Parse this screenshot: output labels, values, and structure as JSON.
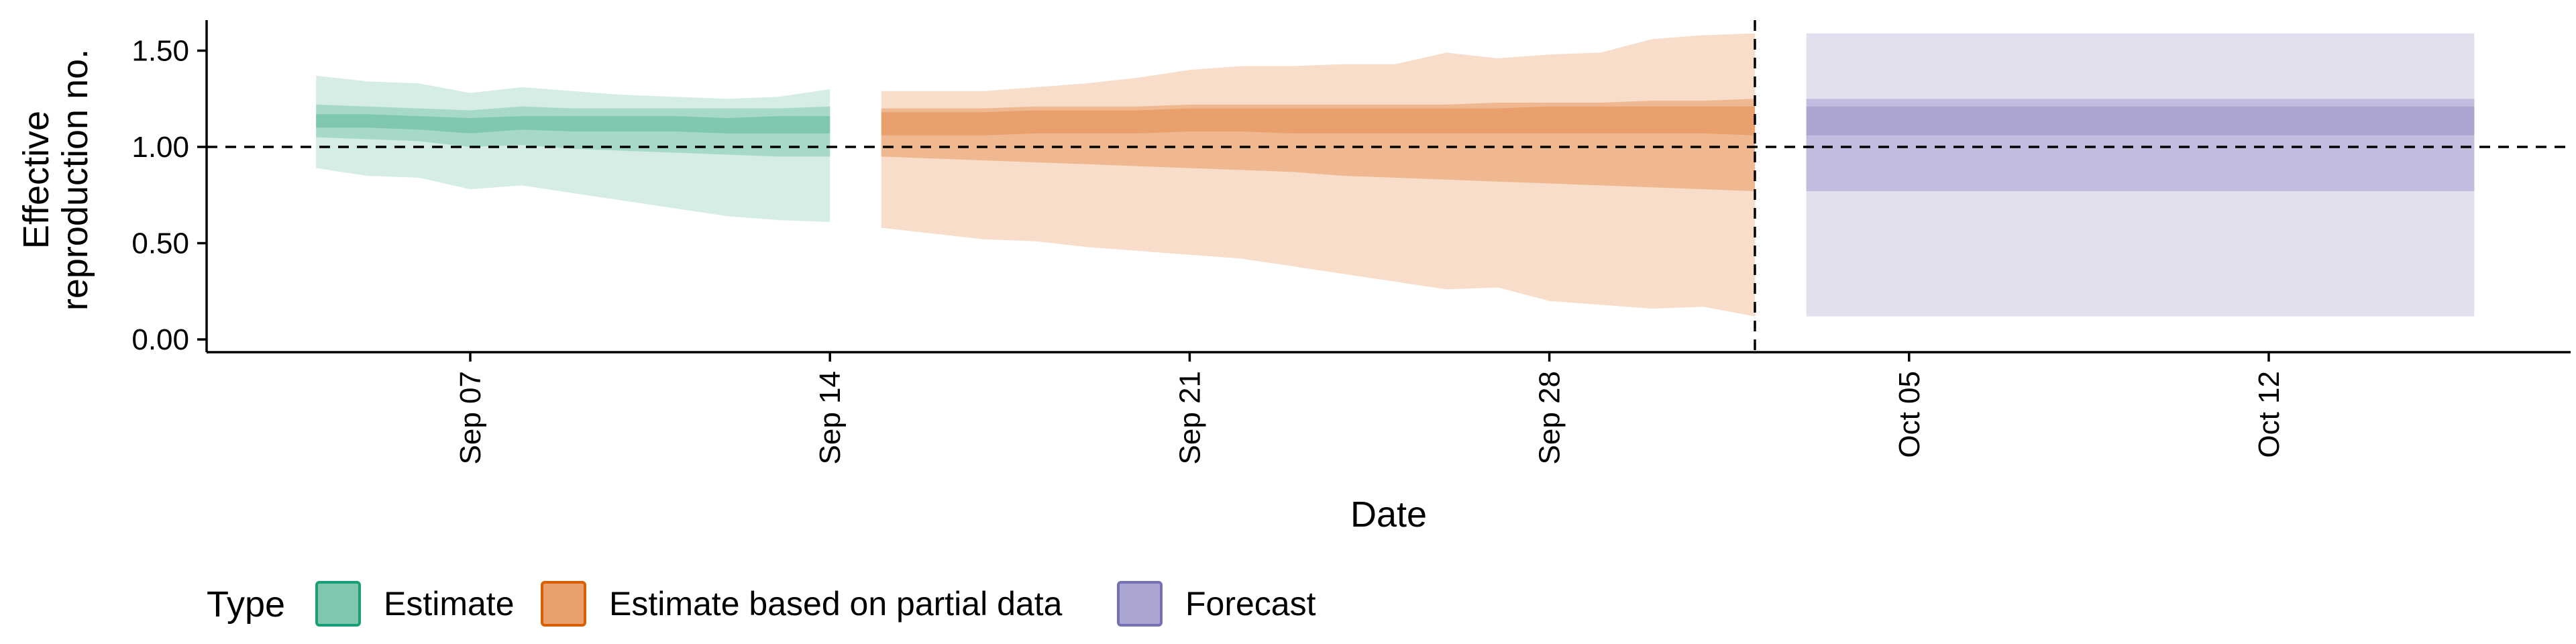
{
  "chart_data": {
    "type": "area",
    "xlabel": "Date",
    "ylabel": [
      "Effective",
      "reproduction no."
    ],
    "ylim": [
      0,
      1.65
    ],
    "yticks": [
      0.0,
      0.5,
      1.0,
      1.5
    ],
    "ytick_labels": [
      "0.00",
      "0.50",
      "1.00",
      "1.50"
    ],
    "xticks": [
      "2020-09-07",
      "2020-09-14",
      "2020-09-21",
      "2020-09-28",
      "2020-10-05",
      "2020-10-12"
    ],
    "xtick_labels": [
      "Sep 07",
      "Sep 14",
      "Sep 21",
      "Sep 28",
      "Oct 05",
      "Oct 12"
    ],
    "xlim": [
      "2020-09-01",
      "2020-10-17"
    ],
    "reference_lines": {
      "horizontal_y": 1.0,
      "vertical_x": "2020-10-02",
      "style": "dashed"
    },
    "legend": {
      "title": "Type",
      "position": "bottom-left",
      "items": [
        {
          "label": "Estimate",
          "fill": "#7fc8ad",
          "border": "#1b9e77"
        },
        {
          "label": "Estimate based on partial data",
          "fill": "#e9a06d",
          "border": "#d95f02"
        },
        {
          "label": "Forecast",
          "fill": "#aba6d1",
          "border": "#7570b3"
        }
      ]
    },
    "series": [
      {
        "name": "Estimate",
        "colors": {
          "outer": "#d5ede4",
          "mid": "#a6dac7",
          "inner": "#7fc8ad"
        },
        "x": [
          "2020-09-04",
          "2020-09-05",
          "2020-09-06",
          "2020-09-07",
          "2020-09-08",
          "2020-09-09",
          "2020-09-10",
          "2020-09-11",
          "2020-09-12",
          "2020-09-13",
          "2020-09-14"
        ],
        "outer_lower": [
          0.89,
          0.85,
          0.84,
          0.78,
          0.8,
          0.76,
          0.72,
          0.68,
          0.64,
          0.62,
          0.61
        ],
        "outer_upper": [
          1.37,
          1.34,
          1.33,
          1.28,
          1.31,
          1.29,
          1.27,
          1.26,
          1.25,
          1.26,
          1.3
        ],
        "mid_lower": [
          1.05,
          1.04,
          1.03,
          1.0,
          1.01,
          0.99,
          0.98,
          0.97,
          0.96,
          0.95,
          0.95
        ],
        "mid_upper": [
          1.22,
          1.21,
          1.2,
          1.19,
          1.21,
          1.2,
          1.2,
          1.2,
          1.2,
          1.2,
          1.21
        ],
        "inner_lower": [
          1.1,
          1.1,
          1.09,
          1.07,
          1.09,
          1.08,
          1.08,
          1.08,
          1.07,
          1.07,
          1.07
        ],
        "inner_upper": [
          1.17,
          1.17,
          1.16,
          1.15,
          1.16,
          1.16,
          1.16,
          1.16,
          1.15,
          1.16,
          1.16
        ]
      },
      {
        "name": "Estimate based on partial data",
        "colors": {
          "outer": "#f7ddca",
          "mid": "#efb890",
          "inner": "#e9a06d"
        },
        "x": [
          "2020-09-15",
          "2020-09-16",
          "2020-09-17",
          "2020-09-18",
          "2020-09-19",
          "2020-09-20",
          "2020-09-21",
          "2020-09-22",
          "2020-09-23",
          "2020-09-24",
          "2020-09-25",
          "2020-09-26",
          "2020-09-27",
          "2020-09-28",
          "2020-09-29",
          "2020-09-30",
          "2020-10-01",
          "2020-10-02"
        ],
        "outer_lower": [
          0.58,
          0.55,
          0.52,
          0.51,
          0.48,
          0.46,
          0.44,
          0.42,
          0.38,
          0.34,
          0.3,
          0.26,
          0.27,
          0.2,
          0.18,
          0.16,
          0.17,
          0.12
        ],
        "outer_upper": [
          1.29,
          1.29,
          1.29,
          1.31,
          1.33,
          1.36,
          1.4,
          1.42,
          1.42,
          1.43,
          1.43,
          1.49,
          1.46,
          1.48,
          1.49,
          1.56,
          1.58,
          1.59
        ],
        "mid_lower": [
          0.95,
          0.94,
          0.93,
          0.92,
          0.91,
          0.9,
          0.89,
          0.88,
          0.87,
          0.85,
          0.84,
          0.83,
          0.82,
          0.81,
          0.8,
          0.79,
          0.78,
          0.77
        ],
        "mid_upper": [
          1.2,
          1.2,
          1.2,
          1.21,
          1.21,
          1.21,
          1.22,
          1.22,
          1.22,
          1.22,
          1.22,
          1.22,
          1.23,
          1.23,
          1.23,
          1.24,
          1.24,
          1.25
        ],
        "inner_lower": [
          1.06,
          1.06,
          1.06,
          1.07,
          1.07,
          1.07,
          1.08,
          1.08,
          1.07,
          1.07,
          1.07,
          1.07,
          1.07,
          1.07,
          1.07,
          1.07,
          1.07,
          1.06
        ],
        "inner_upper": [
          1.18,
          1.18,
          1.18,
          1.19,
          1.19,
          1.19,
          1.2,
          1.2,
          1.2,
          1.2,
          1.2,
          1.2,
          1.2,
          1.21,
          1.21,
          1.21,
          1.21,
          1.21
        ]
      },
      {
        "name": "Forecast",
        "colors": {
          "outer": "#e1e0ee",
          "mid": "#c0bdde",
          "inner": "#aba6d1"
        },
        "x": [
          "2020-10-03",
          "2020-10-16"
        ],
        "outer_lower": [
          0.12,
          0.12
        ],
        "outer_upper": [
          1.59,
          1.59
        ],
        "mid_lower": [
          0.77,
          0.77
        ],
        "mid_upper": [
          1.25,
          1.25
        ],
        "inner_lower": [
          1.06,
          1.06
        ],
        "inner_upper": [
          1.21,
          1.21
        ]
      }
    ]
  }
}
